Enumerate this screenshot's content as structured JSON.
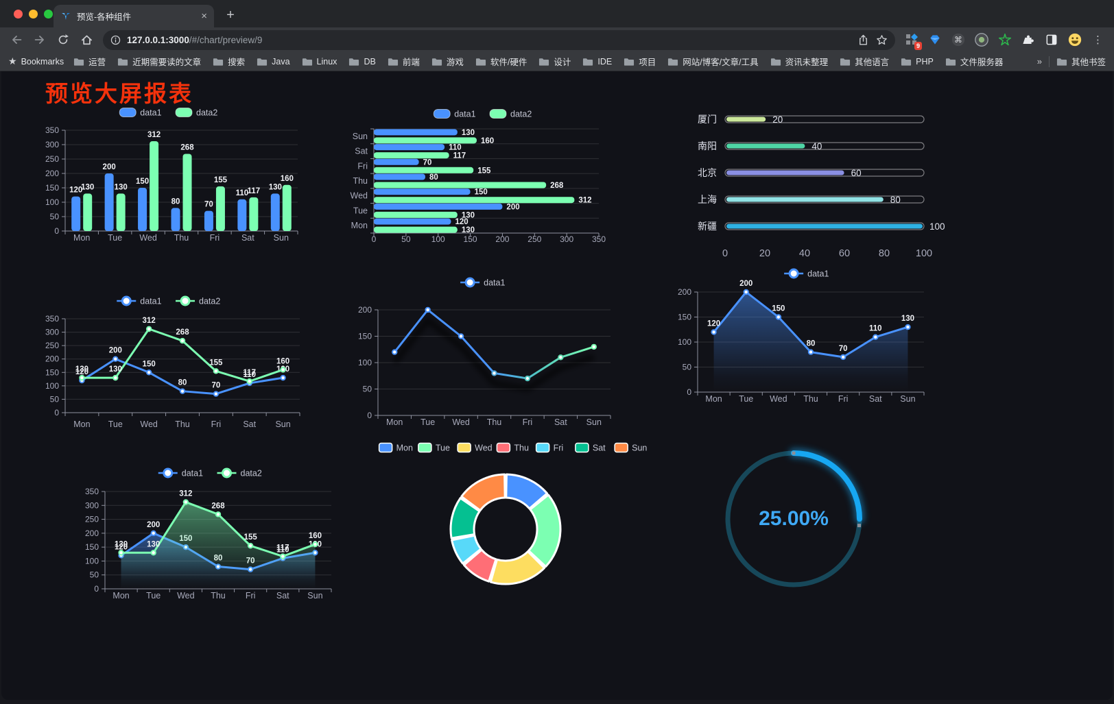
{
  "browser": {
    "tab": {
      "title": "预览-各种组件",
      "close_icon": "×"
    },
    "new_tab_icon": "+",
    "menu_icon": "⋮",
    "url": {
      "host": "127.0.0.1:3000",
      "path": "/#/chart/preview/9"
    },
    "extension_badge": "9",
    "bookmarks": {
      "label": "Bookmarks",
      "star_icon": "★",
      "folders": [
        "运营",
        "近期需要读的文章",
        "搜索",
        "Java",
        "Linux",
        "DB",
        "前端",
        "游戏",
        "软件/硬件",
        "设计",
        "IDE",
        "项目",
        "网站/博客/文章/工具",
        "资讯未整理",
        "其他语言",
        "PHP",
        "文件服务器"
      ],
      "overflow_icon": "»",
      "other_bookmarks": "其他书签"
    }
  },
  "page": {
    "title": "预览大屏报表",
    "title_color": "#f4320c"
  },
  "theme": {
    "axis_text": "#a9abbc",
    "axis_line": "#8f92a0",
    "grid_line": "rgba(255,255,255,0.13)",
    "value_label": "#f0f1f5",
    "legend_text": "#c3c5d2"
  },
  "chart_data": [
    {
      "id": "c1",
      "type": "bar",
      "categories": [
        "Mon",
        "Tue",
        "Wed",
        "Thu",
        "Fri",
        "Sat",
        "Sun"
      ],
      "series": [
        {
          "name": "data1",
          "color": "#4992ff",
          "values": [
            120,
            200,
            150,
            80,
            70,
            110,
            130
          ]
        },
        {
          "name": "data2",
          "color": "#7cffb2",
          "values": [
            130,
            130,
            312,
            268,
            155,
            117,
            160
          ]
        }
      ],
      "ylim": [
        0,
        350
      ],
      "ytick_step": 50,
      "legend_position": "top",
      "value_labels": true
    },
    {
      "id": "c2",
      "type": "bar",
      "orientation": "horizontal",
      "categories_top_to_bottom": [
        "Sun",
        "Sat",
        "Fri",
        "Thu",
        "Wed",
        "Tue",
        "Mon"
      ],
      "series": [
        {
          "name": "data1",
          "color": "#4992ff",
          "values_top_to_bottom": [
            130,
            110,
            70,
            80,
            150,
            200,
            120
          ]
        },
        {
          "name": "data2",
          "color": "#7cffb2",
          "values_top_to_bottom": [
            160,
            117,
            155,
            268,
            312,
            130,
            130
          ]
        }
      ],
      "xlim": [
        0,
        350
      ],
      "xtick_step": 50,
      "legend_position": "top",
      "value_labels": true
    },
    {
      "id": "c3",
      "type": "bar",
      "subtype": "progress",
      "max": 100,
      "items": [
        {
          "label": "厦门",
          "value": 20,
          "color": "#cbe79a"
        },
        {
          "label": "南阳",
          "value": 40,
          "color": "#4fd6a6"
        },
        {
          "label": "北京",
          "value": 60,
          "color": "#8a8fe3"
        },
        {
          "label": "上海",
          "value": 80,
          "color": "#90e2e4"
        },
        {
          "label": "新疆",
          "value": 100,
          "color": "#2fb1e3"
        }
      ],
      "xticks": [
        0,
        20,
        40,
        60,
        80,
        100
      ]
    },
    {
      "id": "c4",
      "type": "line",
      "categories": [
        "Mon",
        "Tue",
        "Wed",
        "Thu",
        "Fri",
        "Sat",
        "Sun"
      ],
      "series": [
        {
          "name": "data1",
          "color": "#4992ff",
          "values": [
            120,
            200,
            150,
            80,
            70,
            110,
            130
          ]
        },
        {
          "name": "data2",
          "color": "#7cffb2",
          "values": [
            130,
            130,
            312,
            268,
            155,
            117,
            160
          ]
        }
      ],
      "ylim": [
        0,
        350
      ],
      "ytick_step": 50,
      "legend_position": "top",
      "value_labels": true
    },
    {
      "id": "c5",
      "type": "line",
      "categories": [
        "Mon",
        "Tue",
        "Wed",
        "Thu",
        "Fri",
        "Sat",
        "Sun"
      ],
      "series": [
        {
          "name": "data1",
          "values": [
            120,
            200,
            150,
            80,
            70,
            110,
            130
          ],
          "line_gradient": [
            "#4992ff",
            "#4992ff",
            "#52c7c0",
            "#7cffb2"
          ],
          "marker_colors": [
            "#4992ff",
            "#4992ff",
            "#4992ff",
            "#4fa8d8",
            "#52c7c0",
            "#63dfb0",
            "#7cffb2"
          ]
        }
      ],
      "ylim": [
        0,
        200
      ],
      "ytick_step": 50,
      "shadow": true,
      "value_labels": false,
      "legend_position": "top"
    },
    {
      "id": "c6",
      "type": "area",
      "categories": [
        "Mon",
        "Tue",
        "Wed",
        "Thu",
        "Fri",
        "Sat",
        "Sun"
      ],
      "series": [
        {
          "name": "data1",
          "color": "#4992ff",
          "values": [
            120,
            200,
            150,
            80,
            70,
            110,
            130
          ],
          "area": true
        }
      ],
      "ylim": [
        0,
        200
      ],
      "ytick_step": 50,
      "value_labels": true,
      "legend_position": "top"
    },
    {
      "id": "c7",
      "type": "area",
      "categories": [
        "Mon",
        "Tue",
        "Wed",
        "Thu",
        "Fri",
        "Sat",
        "Sun"
      ],
      "series": [
        {
          "name": "data1",
          "color": "#4992ff",
          "values": [
            120,
            200,
            150,
            80,
            70,
            110,
            130
          ],
          "area": true
        },
        {
          "name": "data2",
          "color": "#7cffb2",
          "values": [
            130,
            130,
            312,
            268,
            155,
            117,
            160
          ],
          "area": true
        }
      ],
      "ylim": [
        0,
        350
      ],
      "ytick_step": 50,
      "value_labels": true,
      "legend_position": "top"
    },
    {
      "id": "c8",
      "type": "pie",
      "inner_radius_ratio": 0.57,
      "categories": [
        "Mon",
        "Tue",
        "Wed",
        "Thu",
        "Fri",
        "Sat",
        "Sun"
      ],
      "values": [
        120,
        200,
        150,
        80,
        70,
        110,
        130
      ],
      "colors": [
        "#4992ff",
        "#7cffb2",
        "#fddd60",
        "#ff6e76",
        "#58d9f9",
        "#05c091",
        "#ff8a45"
      ],
      "legend_position": "top"
    },
    {
      "id": "c9",
      "type": "gauge",
      "value_label": "25.00%",
      "percent": 25,
      "track_color": "#17485a",
      "progress_color": "#17a7f2",
      "text_color": "#3fa9f5"
    }
  ]
}
